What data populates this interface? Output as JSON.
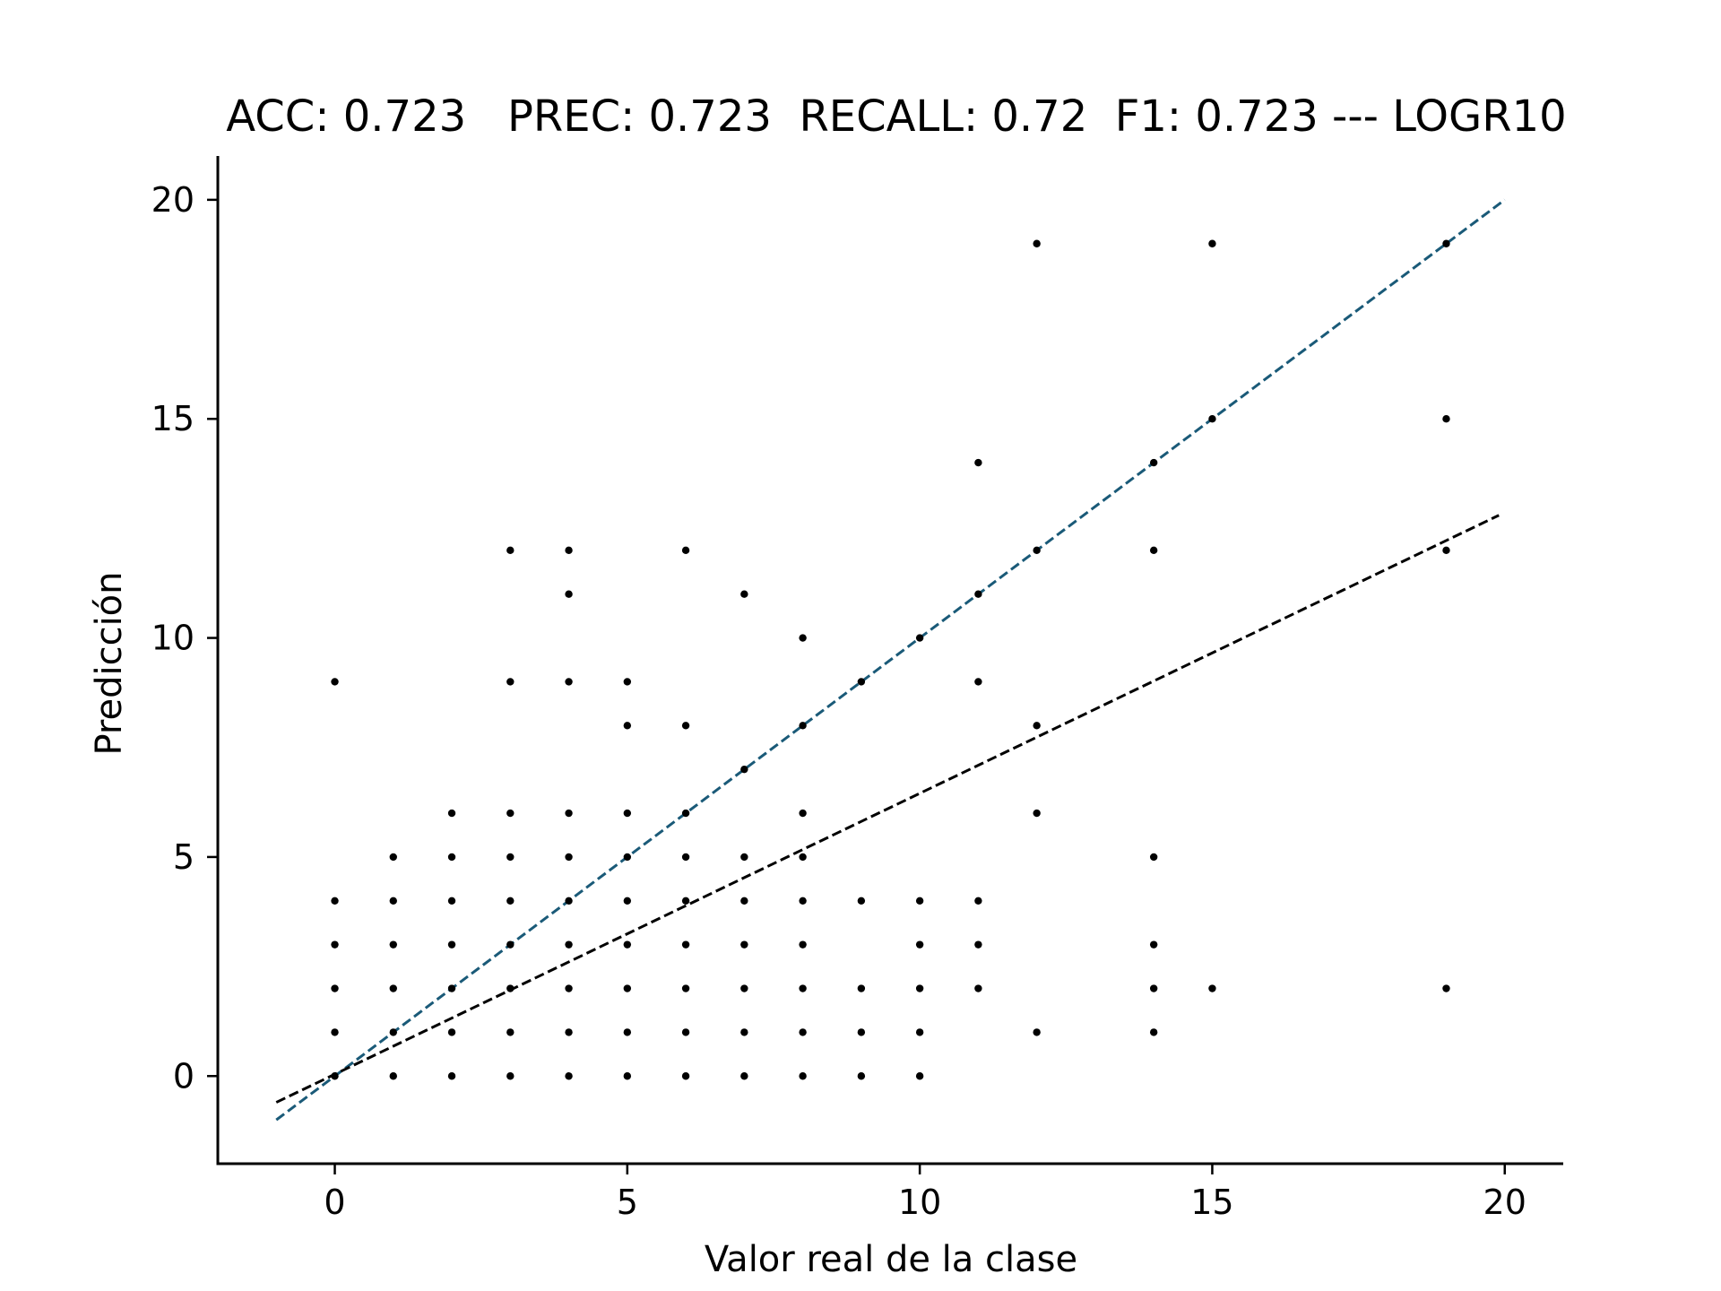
{
  "chart_data": {
    "type": "scatter",
    "title": "ACC: 0.723   PREC: 0.723  RECALL: 0.72  F1: 0.723 --- LOGR10",
    "xlabel": "Valor real de la clase",
    "ylabel": "Predicción",
    "xlim": [
      -2,
      21
    ],
    "ylim": [
      -2,
      21
    ],
    "xticks": [
      0,
      5,
      10,
      15,
      20
    ],
    "yticks": [
      0,
      5,
      10,
      15,
      20
    ],
    "grid": false,
    "points": [
      [
        0,
        0
      ],
      [
        0,
        1
      ],
      [
        0,
        2
      ],
      [
        0,
        3
      ],
      [
        0,
        4
      ],
      [
        0,
        9
      ],
      [
        1,
        0
      ],
      [
        1,
        1
      ],
      [
        1,
        2
      ],
      [
        1,
        3
      ],
      [
        1,
        4
      ],
      [
        1,
        5
      ],
      [
        2,
        0
      ],
      [
        2,
        1
      ],
      [
        2,
        2
      ],
      [
        2,
        3
      ],
      [
        2,
        4
      ],
      [
        2,
        5
      ],
      [
        2,
        6
      ],
      [
        3,
        0
      ],
      [
        3,
        1
      ],
      [
        3,
        2
      ],
      [
        3,
        3
      ],
      [
        3,
        4
      ],
      [
        3,
        5
      ],
      [
        3,
        6
      ],
      [
        3,
        9
      ],
      [
        3,
        12
      ],
      [
        4,
        0
      ],
      [
        4,
        1
      ],
      [
        4,
        2
      ],
      [
        4,
        3
      ],
      [
        4,
        4
      ],
      [
        4,
        5
      ],
      [
        4,
        6
      ],
      [
        4,
        9
      ],
      [
        4,
        11
      ],
      [
        4,
        12
      ],
      [
        5,
        0
      ],
      [
        5,
        1
      ],
      [
        5,
        2
      ],
      [
        5,
        3
      ],
      [
        5,
        4
      ],
      [
        5,
        5
      ],
      [
        5,
        6
      ],
      [
        5,
        8
      ],
      [
        5,
        9
      ],
      [
        6,
        0
      ],
      [
        6,
        1
      ],
      [
        6,
        2
      ],
      [
        6,
        3
      ],
      [
        6,
        4
      ],
      [
        6,
        5
      ],
      [
        6,
        6
      ],
      [
        6,
        8
      ],
      [
        6,
        12
      ],
      [
        7,
        0
      ],
      [
        7,
        1
      ],
      [
        7,
        2
      ],
      [
        7,
        3
      ],
      [
        7,
        4
      ],
      [
        7,
        5
      ],
      [
        7,
        7
      ],
      [
        7,
        11
      ],
      [
        8,
        0
      ],
      [
        8,
        1
      ],
      [
        8,
        2
      ],
      [
        8,
        3
      ],
      [
        8,
        4
      ],
      [
        8,
        5
      ],
      [
        8,
        6
      ],
      [
        8,
        8
      ],
      [
        8,
        10
      ],
      [
        9,
        0
      ],
      [
        9,
        1
      ],
      [
        9,
        2
      ],
      [
        9,
        4
      ],
      [
        9,
        9
      ],
      [
        10,
        0
      ],
      [
        10,
        1
      ],
      [
        10,
        2
      ],
      [
        10,
        3
      ],
      [
        10,
        4
      ],
      [
        10,
        10
      ],
      [
        11,
        2
      ],
      [
        11,
        3
      ],
      [
        11,
        4
      ],
      [
        11,
        9
      ],
      [
        11,
        11
      ],
      [
        11,
        14
      ],
      [
        12,
        1
      ],
      [
        12,
        6
      ],
      [
        12,
        8
      ],
      [
        12,
        12
      ],
      [
        12,
        19
      ],
      [
        14,
        1
      ],
      [
        14,
        2
      ],
      [
        14,
        3
      ],
      [
        14,
        5
      ],
      [
        14,
        12
      ],
      [
        14,
        14
      ],
      [
        15,
        2
      ],
      [
        15,
        15
      ],
      [
        15,
        19
      ],
      [
        19,
        2
      ],
      [
        19,
        12
      ],
      [
        19,
        15
      ],
      [
        19,
        19
      ]
    ],
    "lines": [
      {
        "kind": "identity",
        "x": [
          -1,
          20
        ],
        "y": [
          -1,
          20
        ],
        "color": "#1a5a78",
        "style": "dashed"
      },
      {
        "kind": "fit",
        "x": [
          -1,
          19.9
        ],
        "y": [
          -0.6,
          12.8
        ],
        "color": "#000000",
        "style": "dashed"
      }
    ],
    "colors": {
      "points": "#000000",
      "axes": "#000000"
    }
  }
}
